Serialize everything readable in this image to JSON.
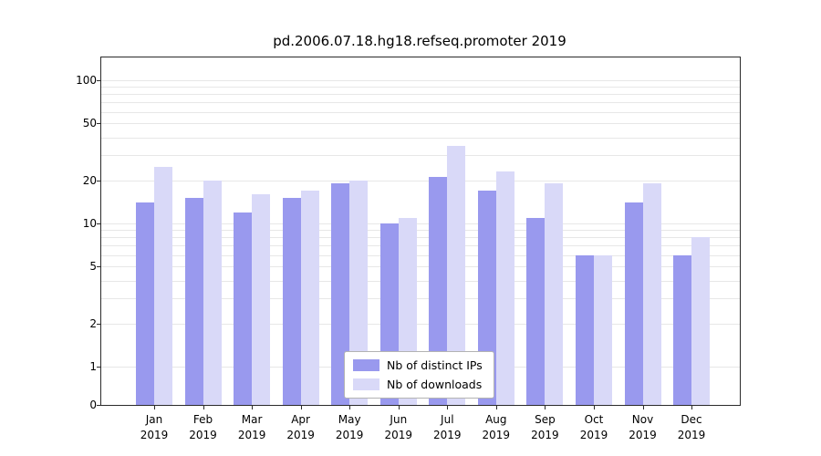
{
  "chart_data": {
    "type": "bar",
    "title": "pd.2006.07.18.hg18.refseq.promoter 2019",
    "categories": [
      "Jan",
      "Feb",
      "Mar",
      "Apr",
      "May",
      "Jun",
      "Jul",
      "Aug",
      "Sep",
      "Oct",
      "Nov",
      "Dec"
    ],
    "year_label": "2019",
    "series": [
      {
        "name": "Nb of distinct IPs",
        "color": "#9999ee",
        "values": [
          14,
          15,
          12,
          15,
          19,
          10,
          21,
          17,
          11,
          6,
          14,
          6
        ]
      },
      {
        "name": "Nb of downloads",
        "color": "#d9d9f8",
        "values": [
          25,
          20,
          16,
          17,
          20,
          11,
          35,
          23,
          19,
          6,
          19,
          8
        ]
      }
    ],
    "yticks": [
      0,
      1,
      2,
      5,
      10,
      20,
      50,
      100
    ],
    "scale": "log-with-zero-baseline",
    "ylim": [
      0,
      100
    ],
    "grid": "minor-horizontal",
    "legend_position": "bottom-center",
    "xlabel": "",
    "ylabel": ""
  }
}
